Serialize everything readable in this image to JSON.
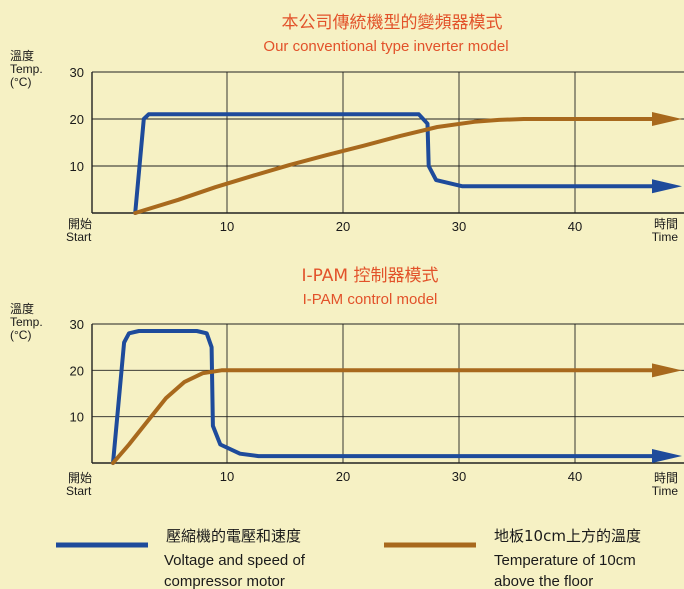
{
  "chart_data": [
    {
      "type": "line",
      "title": "本公司傳統機型的變頻器模式",
      "subtitle": "Our conventional type inverter model",
      "ylabel_cn": "溫度",
      "ylabel": "Temp.",
      "ylabel_unit": "(°C)",
      "xlabel_cn": "時間",
      "xlabel": "Time",
      "x_start_cn": "開始",
      "x_start": "Start",
      "xticks": [
        "10",
        "20",
        "30",
        "40"
      ],
      "yticks": [
        "10",
        "20",
        "30"
      ],
      "xlim": [
        0,
        48
      ],
      "ylim": [
        0,
        30
      ],
      "grid": true,
      "series": [
        {
          "key": "voltage",
          "color": "#1e4b9b",
          "points": [
            [
              3.5,
              0
            ],
            [
              4.2,
              20
            ],
            [
              4.6,
              21
            ],
            [
              5.2,
              21
            ],
            [
              25.5,
              21
            ],
            [
              26.5,
              21
            ],
            [
              27.2,
              19
            ],
            [
              27.3,
              10
            ],
            [
              27.9,
              7
            ],
            [
              30,
              5.7
            ],
            [
              47,
              5.7
            ]
          ],
          "arrow": true
        },
        {
          "key": "temperature",
          "color": "#a8691d",
          "points": [
            [
              3.5,
              0
            ],
            [
              7,
              2.8
            ],
            [
              10,
              5.5
            ],
            [
              13,
              7.9
            ],
            [
              16,
              10.2
            ],
            [
              19,
              12.3
            ],
            [
              22,
              14.3
            ],
            [
              25,
              16.4
            ],
            [
              28,
              18.3
            ],
            [
              31,
              19.4
            ],
            [
              33,
              19.8
            ],
            [
              35,
              20
            ],
            [
              47,
              20
            ]
          ],
          "arrow": true
        }
      ]
    },
    {
      "type": "line",
      "title": "I-PAM 控制器模式",
      "subtitle": "I-PAM control model",
      "ylabel_cn": "溫度",
      "ylabel": "Temp.",
      "ylabel_unit": "(°C)",
      "xlabel_cn": "時間",
      "xlabel": "Time",
      "x_start_cn": "開始",
      "x_start": "Start",
      "xticks": [
        "10",
        "20",
        "30",
        "40"
      ],
      "yticks": [
        "10",
        "20",
        "30"
      ],
      "xlim": [
        0,
        48
      ],
      "ylim": [
        0,
        30
      ],
      "grid": true,
      "series": [
        {
          "key": "voltage",
          "color": "#1e4b9b",
          "points": [
            [
              1.7,
              0
            ],
            [
              2.6,
              26
            ],
            [
              3,
              28
            ],
            [
              3.8,
              28.5
            ],
            [
              8.5,
              28.5
            ],
            [
              9.3,
              28
            ],
            [
              9.7,
              25
            ],
            [
              9.8,
              8
            ],
            [
              10.4,
              4
            ],
            [
              12,
              2
            ],
            [
              13.5,
              1.5
            ],
            [
              47,
              1.5
            ]
          ],
          "arrow": true
        },
        {
          "key": "temperature",
          "color": "#a8691d",
          "points": [
            [
              1.7,
              0
            ],
            [
              3,
              4
            ],
            [
              4.5,
              9
            ],
            [
              6,
              14
            ],
            [
              7.5,
              17.5
            ],
            [
              9,
              19.4
            ],
            [
              10.5,
              20
            ],
            [
              47,
              20
            ]
          ],
          "arrow": true
        }
      ]
    }
  ],
  "legend": [
    {
      "key": "voltage",
      "color": "#1e4b9b",
      "label_cn": "壓縮機的電壓和速度",
      "label_en_1": "Voltage and speed of",
      "label_en_2": "compressor motor"
    },
    {
      "key": "temperature",
      "color": "#a8691d",
      "label_cn": "地板10cm上方的溫度",
      "label_en_1": "Temperature of 10cm",
      "label_en_2": "above the floor"
    }
  ],
  "colors": {
    "background": "#f6f1c4",
    "title": "#e2522a",
    "grid": "#222222"
  }
}
